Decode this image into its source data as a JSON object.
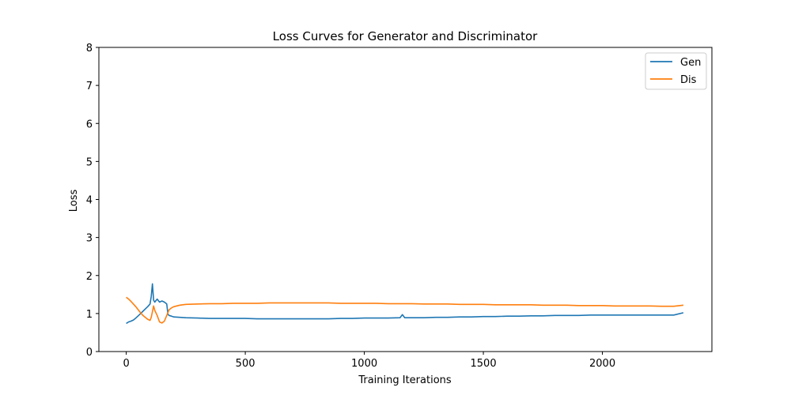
{
  "chart_data": {
    "type": "line",
    "title": "Loss Curves for Generator and Discriminator",
    "xlabel": "Training Iterations",
    "ylabel": "Loss",
    "xlim": [
      -115,
      2460
    ],
    "ylim": [
      0,
      8
    ],
    "xticks": [
      0,
      500,
      1000,
      1500,
      2000
    ],
    "yticks": [
      0,
      1,
      2,
      3,
      4,
      5,
      6,
      7,
      8
    ],
    "grid": false,
    "legend_position": "top-right",
    "series": [
      {
        "name": "Gen",
        "color": "#1f77b4",
        "points": [
          [
            0,
            0.74
          ],
          [
            10,
            0.78
          ],
          [
            20,
            0.8
          ],
          [
            30,
            0.83
          ],
          [
            40,
            0.88
          ],
          [
            50,
            0.94
          ],
          [
            60,
            1.0
          ],
          [
            70,
            1.06
          ],
          [
            80,
            1.12
          ],
          [
            90,
            1.18
          ],
          [
            100,
            1.25
          ],
          [
            105,
            1.45
          ],
          [
            110,
            1.78
          ],
          [
            115,
            1.35
          ],
          [
            120,
            1.3
          ],
          [
            130,
            1.38
          ],
          [
            140,
            1.3
          ],
          [
            150,
            1.33
          ],
          [
            160,
            1.3
          ],
          [
            170,
            1.25
          ],
          [
            175,
            0.98
          ],
          [
            180,
            0.95
          ],
          [
            190,
            0.93
          ],
          [
            200,
            0.91
          ],
          [
            225,
            0.9
          ],
          [
            250,
            0.89
          ],
          [
            300,
            0.88
          ],
          [
            350,
            0.87
          ],
          [
            400,
            0.87
          ],
          [
            450,
            0.87
          ],
          [
            500,
            0.87
          ],
          [
            550,
            0.86
          ],
          [
            600,
            0.86
          ],
          [
            650,
            0.86
          ],
          [
            700,
            0.86
          ],
          [
            750,
            0.86
          ],
          [
            800,
            0.86
          ],
          [
            850,
            0.86
          ],
          [
            900,
            0.87
          ],
          [
            950,
            0.87
          ],
          [
            1000,
            0.88
          ],
          [
            1050,
            0.88
          ],
          [
            1100,
            0.88
          ],
          [
            1150,
            0.89
          ],
          [
            1160,
            0.97
          ],
          [
            1170,
            0.89
          ],
          [
            1200,
            0.89
          ],
          [
            1250,
            0.89
          ],
          [
            1300,
            0.9
          ],
          [
            1350,
            0.9
          ],
          [
            1400,
            0.91
          ],
          [
            1450,
            0.91
          ],
          [
            1500,
            0.92
          ],
          [
            1550,
            0.92
          ],
          [
            1600,
            0.93
          ],
          [
            1650,
            0.93
          ],
          [
            1700,
            0.94
          ],
          [
            1750,
            0.94
          ],
          [
            1800,
            0.95
          ],
          [
            1850,
            0.95
          ],
          [
            1900,
            0.95
          ],
          [
            1950,
            0.96
          ],
          [
            2000,
            0.96
          ],
          [
            2050,
            0.96
          ],
          [
            2100,
            0.96
          ],
          [
            2150,
            0.96
          ],
          [
            2200,
            0.96
          ],
          [
            2250,
            0.96
          ],
          [
            2300,
            0.96
          ],
          [
            2340,
            1.02
          ]
        ]
      },
      {
        "name": "Dis",
        "color": "#ff7f0e",
        "points": [
          [
            0,
            1.43
          ],
          [
            10,
            1.38
          ],
          [
            20,
            1.32
          ],
          [
            30,
            1.25
          ],
          [
            40,
            1.18
          ],
          [
            50,
            1.1
          ],
          [
            60,
            1.02
          ],
          [
            70,
            0.95
          ],
          [
            80,
            0.9
          ],
          [
            90,
            0.85
          ],
          [
            100,
            0.82
          ],
          [
            105,
            0.9
          ],
          [
            110,
            1.05
          ],
          [
            115,
            1.2
          ],
          [
            120,
            1.08
          ],
          [
            130,
            0.95
          ],
          [
            140,
            0.78
          ],
          [
            150,
            0.75
          ],
          [
            160,
            0.8
          ],
          [
            170,
            0.95
          ],
          [
            180,
            1.1
          ],
          [
            190,
            1.15
          ],
          [
            200,
            1.18
          ],
          [
            225,
            1.22
          ],
          [
            250,
            1.24
          ],
          [
            300,
            1.25
          ],
          [
            350,
            1.26
          ],
          [
            400,
            1.26
          ],
          [
            450,
            1.27
          ],
          [
            500,
            1.27
          ],
          [
            550,
            1.27
          ],
          [
            600,
            1.28
          ],
          [
            650,
            1.28
          ],
          [
            700,
            1.28
          ],
          [
            750,
            1.28
          ],
          [
            800,
            1.28
          ],
          [
            850,
            1.28
          ],
          [
            900,
            1.27
          ],
          [
            950,
            1.27
          ],
          [
            1000,
            1.27
          ],
          [
            1050,
            1.27
          ],
          [
            1100,
            1.26
          ],
          [
            1150,
            1.26
          ],
          [
            1200,
            1.26
          ],
          [
            1250,
            1.25
          ],
          [
            1300,
            1.25
          ],
          [
            1350,
            1.25
          ],
          [
            1400,
            1.24
          ],
          [
            1450,
            1.24
          ],
          [
            1500,
            1.24
          ],
          [
            1550,
            1.23
          ],
          [
            1600,
            1.23
          ],
          [
            1650,
            1.23
          ],
          [
            1700,
            1.23
          ],
          [
            1750,
            1.22
          ],
          [
            1800,
            1.22
          ],
          [
            1850,
            1.22
          ],
          [
            1900,
            1.21
          ],
          [
            1950,
            1.21
          ],
          [
            2000,
            1.21
          ],
          [
            2050,
            1.2
          ],
          [
            2100,
            1.2
          ],
          [
            2150,
            1.2
          ],
          [
            2200,
            1.2
          ],
          [
            2250,
            1.19
          ],
          [
            2300,
            1.19
          ],
          [
            2340,
            1.22
          ]
        ]
      }
    ]
  }
}
